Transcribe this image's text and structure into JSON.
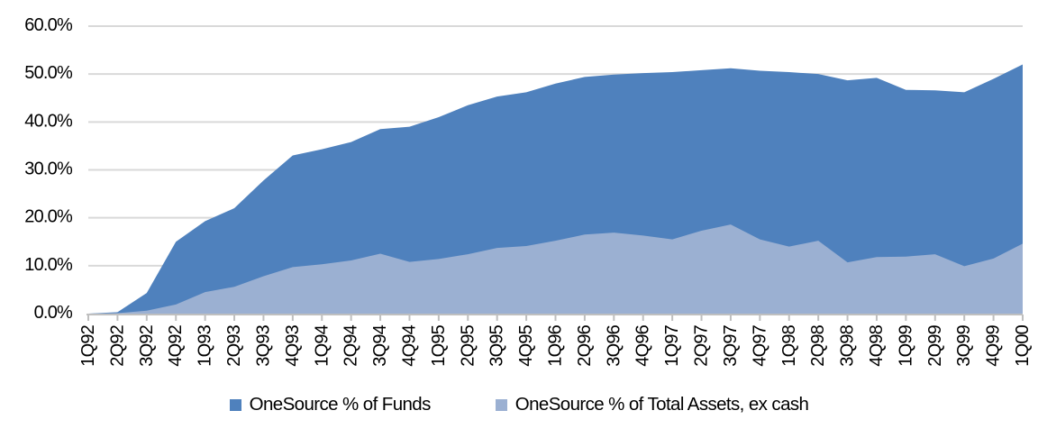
{
  "chart_data": {
    "type": "area",
    "title": "",
    "categories": [
      "1Q92",
      "2Q92",
      "3Q92",
      "4Q92",
      "1Q93",
      "2Q93",
      "3Q93",
      "4Q93",
      "1Q94",
      "2Q94",
      "3Q94",
      "4Q94",
      "1Q95",
      "2Q95",
      "3Q95",
      "4Q95",
      "1Q96",
      "2Q96",
      "3Q96",
      "4Q96",
      "1Q97",
      "2Q97",
      "3Q97",
      "4Q97",
      "1Q98",
      "2Q98",
      "3Q98",
      "4Q98",
      "1Q99",
      "2Q99",
      "3Q99",
      "4Q99",
      "1Q00"
    ],
    "series": [
      {
        "name": "OneSource % of Funds",
        "color": "#4F81BD",
        "values": [
          0.0,
          0.3,
          4.3,
          15.0,
          19.3,
          22.0,
          27.8,
          33.0,
          34.3,
          35.8,
          38.5,
          39.0,
          41.0,
          43.5,
          45.3,
          46.2,
          48.0,
          49.4,
          49.9,
          50.2,
          50.4,
          50.8,
          51.2,
          50.7,
          50.4,
          50.0,
          48.7,
          49.2,
          46.7,
          46.6,
          46.2,
          49.0,
          52.0
        ]
      },
      {
        "name": "OneSource % of Total Assets, ex cash",
        "color": "#9BB0D2",
        "values": [
          0.0,
          0.1,
          0.6,
          1.9,
          4.5,
          5.6,
          7.8,
          9.7,
          10.3,
          11.1,
          12.5,
          10.8,
          11.4,
          12.4,
          13.7,
          14.1,
          15.2,
          16.5,
          16.9,
          16.3,
          15.5,
          17.3,
          18.6,
          15.5,
          14.0,
          15.2,
          10.7,
          11.8,
          11.9,
          12.4,
          9.9,
          11.5,
          14.6
        ]
      }
    ],
    "ylim": [
      0,
      60
    ],
    "y_tick_step": 10,
    "y_tick_labels": [
      "0.0%",
      "10.0%",
      "20.0%",
      "30.0%",
      "40.0%",
      "50.0%",
      "60.0%"
    ],
    "grid": true,
    "gridline_color": "#D9D9D9",
    "axis_color": "#BFBFBF",
    "text_color": "#000000",
    "legend_position": "bottom"
  }
}
